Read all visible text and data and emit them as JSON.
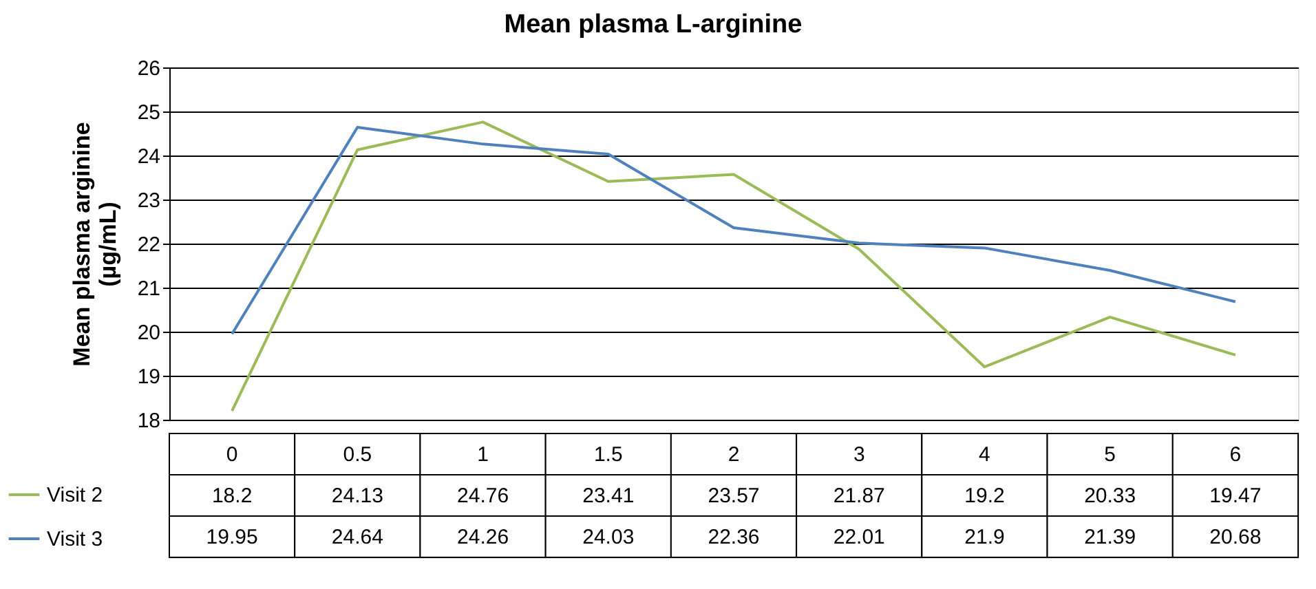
{
  "chart_data": {
    "type": "line",
    "title": "Mean plasma L-arginine",
    "ylabel": "Mean plasma arginine (µg/mL)",
    "categories": [
      "0",
      "0.5",
      "1",
      "1.5",
      "2",
      "3",
      "4",
      "5",
      "6"
    ],
    "series": [
      {
        "name": "Visit 2",
        "color": "#9bbb59",
        "values": [
          18.2,
          24.13,
          24.76,
          23.41,
          23.57,
          21.87,
          19.2,
          20.33,
          19.47
        ]
      },
      {
        "name": "Visit 3",
        "color": "#4f81bd",
        "values": [
          19.95,
          24.64,
          24.26,
          24.03,
          22.36,
          22.01,
          21.9,
          21.39,
          20.68
        ]
      }
    ],
    "ylim": [
      18,
      26
    ],
    "yticks": [
      18,
      19,
      20,
      21,
      22,
      23,
      24,
      25,
      26
    ],
    "grid": "y",
    "legend": "bottom",
    "data_labels": true
  }
}
